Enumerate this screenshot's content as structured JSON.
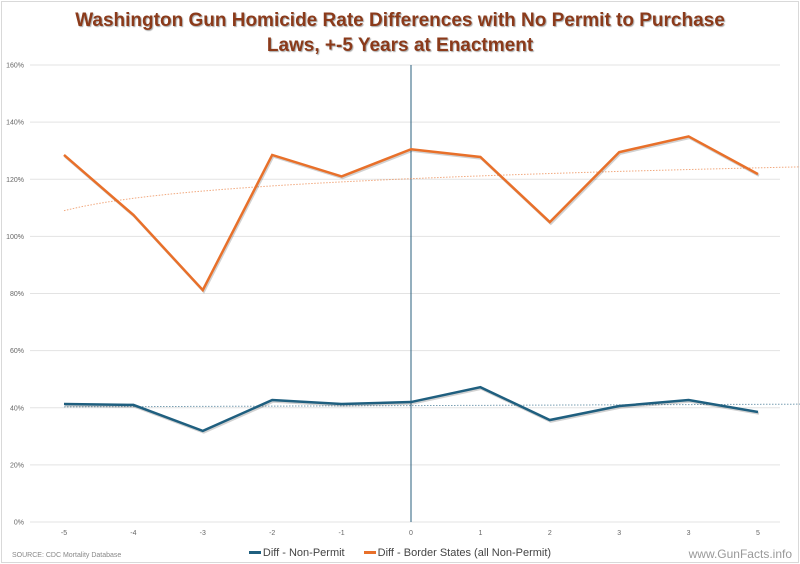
{
  "title_line1": "Washington Gun Homicide Rate Differences with No Permit to Purchase",
  "title_line2": "Laws, +-5 Years at Enactment",
  "source": "SOURCE: CDC Mortality Database",
  "brand": "www.GunFacts.info",
  "chart_data": {
    "type": "line",
    "title": "Washington Gun Homicide Rate Differences with No Permit to Purchase Laws, +-5 Years at Enactment",
    "categories": [
      "-5",
      "-4",
      "-3",
      "-2",
      "-1",
      "0",
      "1",
      "2",
      "3",
      "3",
      "5"
    ],
    "ylim": [
      0,
      160
    ],
    "yticks": [
      "0%",
      "20%",
      "40%",
      "60%",
      "80%",
      "100%",
      "120%",
      "140%",
      "160%"
    ],
    "grid": true,
    "legend": "bottom",
    "vertical_marker_at": "0",
    "series": [
      {
        "name": "Diff - Non-Permit",
        "color": "#1f5f7f",
        "values": [
          41.3,
          41.0,
          31.9,
          42.7,
          41.3,
          42.0,
          47.2,
          35.7,
          40.6,
          42.7,
          38.5
        ],
        "trendline": "linear",
        "trend": [
          40.3,
          41.2
        ]
      },
      {
        "name": "Diff - Border States (all Non-Permit)",
        "color": "#e8702a",
        "values": [
          128.5,
          107.5,
          81.2,
          128.5,
          121.0,
          130.5,
          127.8,
          105.0,
          129.5,
          135.0,
          121.8
        ],
        "trendline": "logarithmic",
        "trend": [
          109,
          124
        ]
      }
    ]
  }
}
